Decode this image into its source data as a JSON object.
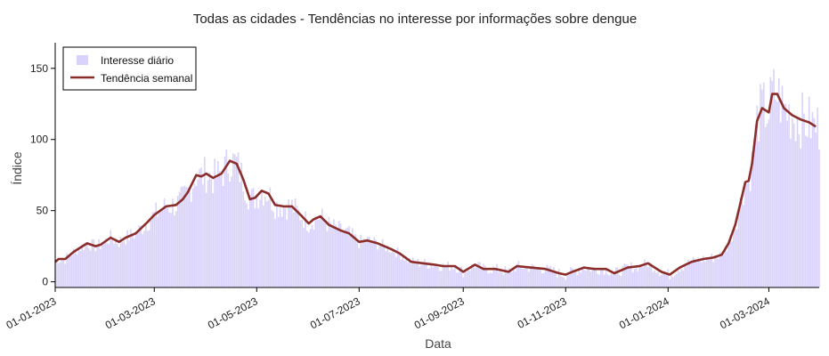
{
  "chart_data": {
    "type": "bar",
    "title": "Todas as cidades - Tendências no interesse por informações sobre dengue",
    "xlabel": "Data",
    "ylabel": "Índice",
    "x_range": [
      "2023-01-01",
      "2024-03-31"
    ],
    "ylim": [
      -4,
      168
    ],
    "yticks": [
      0,
      50,
      100,
      150
    ],
    "xticks": [
      {
        "date": "2023-01-01",
        "label": "01-01-2023"
      },
      {
        "date": "2023-03-01",
        "label": "01-03-2023"
      },
      {
        "date": "2023-05-01",
        "label": "01-05-2023"
      },
      {
        "date": "2023-07-01",
        "label": "01-07-2023"
      },
      {
        "date": "2023-09-01",
        "label": "01-09-2023"
      },
      {
        "date": "2023-11-01",
        "label": "01-11-2023"
      },
      {
        "date": "2024-01-01",
        "label": "01-01-2024"
      },
      {
        "date": "2024-03-01",
        "label": "01-03-2024"
      }
    ],
    "grid": false,
    "legend": {
      "position": "top-left",
      "entries": [
        "Interesse diário",
        "Tendência semanal"
      ]
    },
    "colors": {
      "bars": "#d9d2fb",
      "trend": "#8b2e2a",
      "axes": "#000000"
    },
    "series": [
      {
        "name": "Interesse diário",
        "kind": "bar",
        "start_date": "2023-01-01",
        "noise_amplitude": 12,
        "values_from_trend": true
      },
      {
        "name": "Tendência semanal",
        "kind": "line",
        "points": [
          [
            "2023-01-01",
            14
          ],
          [
            "2023-01-03",
            16
          ],
          [
            "2023-01-07",
            16
          ],
          [
            "2023-01-12",
            21
          ],
          [
            "2023-01-20",
            27
          ],
          [
            "2023-01-25",
            25
          ],
          [
            "2023-01-28",
            26
          ],
          [
            "2023-02-03",
            31
          ],
          [
            "2023-02-08",
            28
          ],
          [
            "2023-02-12",
            31
          ],
          [
            "2023-02-18",
            34
          ],
          [
            "2023-02-25",
            42
          ],
          [
            "2023-03-01",
            47
          ],
          [
            "2023-03-08",
            53
          ],
          [
            "2023-03-14",
            54
          ],
          [
            "2023-03-18",
            58
          ],
          [
            "2023-03-21",
            63
          ],
          [
            "2023-03-26",
            75
          ],
          [
            "2023-03-29",
            74
          ],
          [
            "2023-04-01",
            76
          ],
          [
            "2023-04-05",
            73
          ],
          [
            "2023-04-10",
            76
          ],
          [
            "2023-04-15",
            85
          ],
          [
            "2023-04-19",
            83
          ],
          [
            "2023-04-23",
            72
          ],
          [
            "2023-04-27",
            58
          ],
          [
            "2023-04-30",
            59
          ],
          [
            "2023-05-04",
            64
          ],
          [
            "2023-05-08",
            62
          ],
          [
            "2023-05-12",
            54
          ],
          [
            "2023-05-17",
            53
          ],
          [
            "2023-05-22",
            53
          ],
          [
            "2023-05-28",
            46
          ],
          [
            "2023-06-01",
            41
          ],
          [
            "2023-06-04",
            44
          ],
          [
            "2023-06-08",
            46
          ],
          [
            "2023-06-13",
            40
          ],
          [
            "2023-06-20",
            36
          ],
          [
            "2023-06-25",
            34
          ],
          [
            "2023-07-01",
            28
          ],
          [
            "2023-07-06",
            29
          ],
          [
            "2023-07-12",
            27
          ],
          [
            "2023-07-20",
            23
          ],
          [
            "2023-07-25",
            20
          ],
          [
            "2023-08-01",
            14
          ],
          [
            "2023-08-08",
            13
          ],
          [
            "2023-08-15",
            12
          ],
          [
            "2023-08-20",
            11
          ],
          [
            "2023-08-27",
            11
          ],
          [
            "2023-09-01",
            7
          ],
          [
            "2023-09-08",
            12
          ],
          [
            "2023-09-13",
            9
          ],
          [
            "2023-09-20",
            9
          ],
          [
            "2023-09-28",
            7
          ],
          [
            "2023-10-03",
            11
          ],
          [
            "2023-10-11",
            10
          ],
          [
            "2023-10-20",
            9
          ],
          [
            "2023-10-28",
            6
          ],
          [
            "2023-11-01",
            5
          ],
          [
            "2023-11-05",
            7
          ],
          [
            "2023-11-12",
            10
          ],
          [
            "2023-11-18",
            9
          ],
          [
            "2023-11-25",
            9
          ],
          [
            "2023-11-30",
            6
          ],
          [
            "2023-12-08",
            10
          ],
          [
            "2023-12-15",
            11
          ],
          [
            "2023-12-20",
            13
          ],
          [
            "2023-12-28",
            7
          ],
          [
            "2024-01-02",
            5
          ],
          [
            "2024-01-08",
            10
          ],
          [
            "2024-01-15",
            14
          ],
          [
            "2024-01-22",
            16
          ],
          [
            "2024-01-28",
            17
          ],
          [
            "2024-02-02",
            19
          ],
          [
            "2024-02-06",
            27
          ],
          [
            "2024-02-10",
            40
          ],
          [
            "2024-02-13",
            55
          ],
          [
            "2024-02-16",
            70
          ],
          [
            "2024-02-18",
            71
          ],
          [
            "2024-02-20",
            83
          ],
          [
            "2024-02-23",
            113
          ],
          [
            "2024-02-26",
            122
          ],
          [
            "2024-03-01",
            119
          ],
          [
            "2024-03-03",
            132
          ],
          [
            "2024-03-06",
            132
          ],
          [
            "2024-03-10",
            122
          ],
          [
            "2024-03-15",
            117
          ],
          [
            "2024-03-20",
            114
          ],
          [
            "2024-03-25",
            112
          ],
          [
            "2024-03-29",
            109
          ]
        ]
      }
    ]
  }
}
